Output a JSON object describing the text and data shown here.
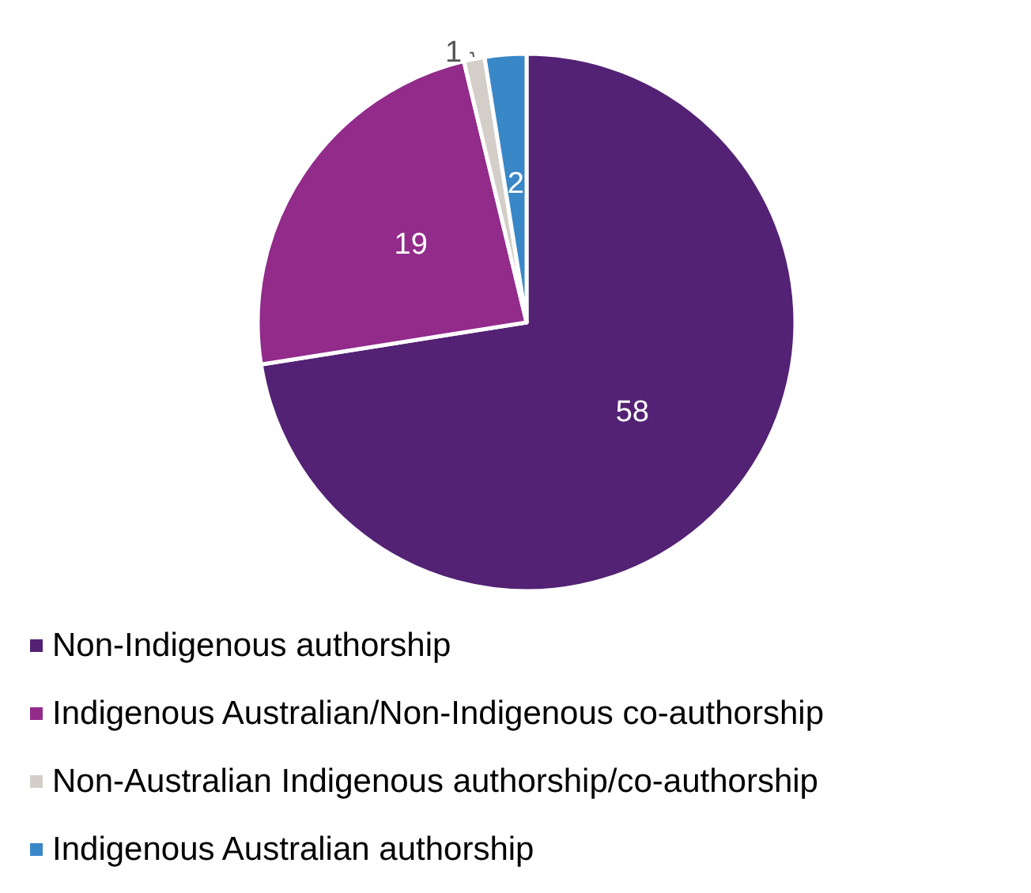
{
  "chart_data": {
    "type": "pie",
    "categories": [
      "Non-Indigenous authorship",
      "Indigenous Australian/Non-Indigenous co-authorship",
      "Non-Australian Indigenous authorship/co-authorship",
      "Indigenous Australian authorship"
    ],
    "values": [
      58,
      19,
      1,
      2
    ],
    "colors": [
      "#532274",
      "#922b8a",
      "#d3cfc8",
      "#3a87c8"
    ],
    "data_labels": true,
    "legend": "bottom left"
  }
}
